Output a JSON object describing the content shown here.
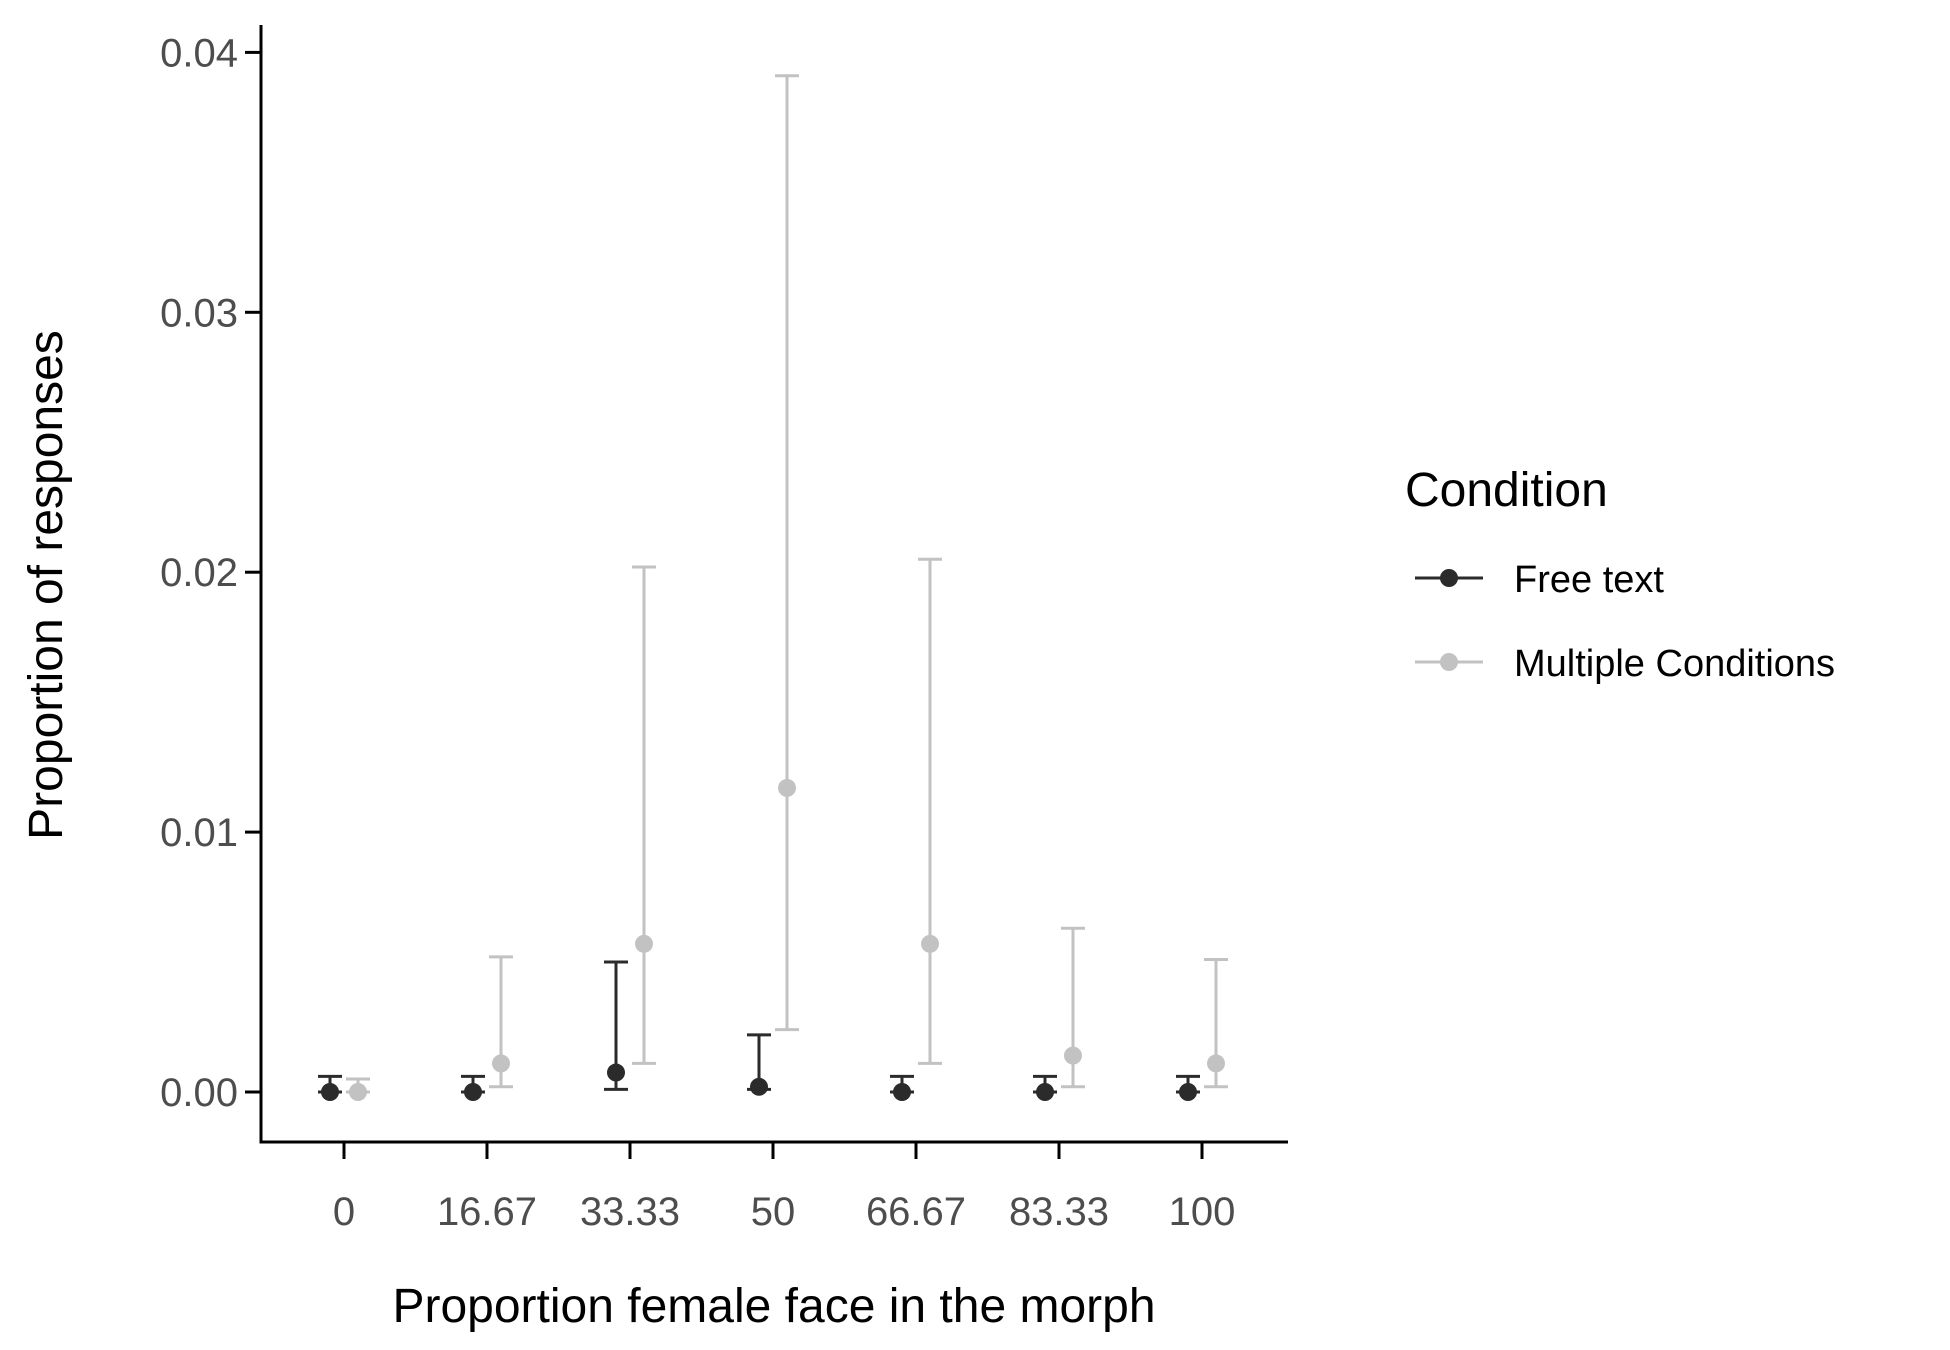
{
  "chart_data": {
    "type": "scatter",
    "title": "",
    "xlabel": "Proportion female face in the morph",
    "ylabel": "Proportion of responses",
    "categories": [
      "0",
      "16.67",
      "33.33",
      "50",
      "66.67",
      "83.33",
      "100"
    ],
    "y_ticks": [
      "0.00",
      "0.01",
      "0.02",
      "0.03",
      "0.04"
    ],
    "y_tick_values": [
      0,
      0.01,
      0.02,
      0.03,
      0.04
    ],
    "ylim": [
      -0.0019,
      0.0411
    ],
    "grid": false,
    "legend": {
      "title": "Condition",
      "position": "right"
    },
    "series": [
      {
        "name": "Free text",
        "color": "#2b2b2b",
        "values": [
          0.0,
          0.0,
          0.00075,
          0.0002,
          0.0,
          0.0,
          0.0
        ],
        "lower": [
          0.0,
          0.0,
          0.0001,
          0.0001,
          0.0,
          0.0,
          0.0
        ],
        "upper": [
          0.0006,
          0.0006,
          0.005,
          0.0022,
          0.0006,
          0.0006,
          0.0006
        ]
      },
      {
        "name": "Multiple Conditions",
        "color": "#c2c2c2",
        "values": [
          0.0,
          0.0011,
          0.0057,
          0.0117,
          0.0057,
          0.0014,
          0.0011
        ],
        "lower": [
          0.0,
          0.0002,
          0.0011,
          0.0024,
          0.0011,
          0.0002,
          0.0002
        ],
        "upper": [
          0.0005,
          0.0052,
          0.0202,
          0.0391,
          0.0205,
          0.0063,
          0.0051
        ]
      }
    ]
  }
}
